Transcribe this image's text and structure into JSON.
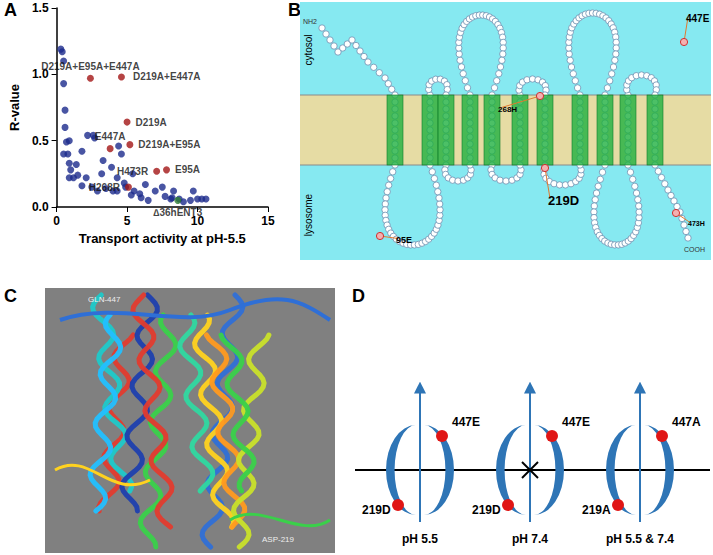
{
  "chart_data": {
    "type": "scatter",
    "xlabel": "Transport activity at pH-5.5",
    "ylabel": "R-value",
    "xlim": [
      0,
      15
    ],
    "xticks": [
      0,
      5,
      10,
      15
    ],
    "ylim": [
      0,
      1.5
    ],
    "yticks": [
      {
        "value": 0,
        "label": "0.0"
      },
      {
        "value": 0.5,
        "label": "0.5"
      },
      {
        "value": 1,
        "label": "1.0"
      },
      {
        "value": 1.5,
        "label": "1.5"
      }
    ],
    "grid": false,
    "series": [
      {
        "color": "#1c2a8c",
        "x": [
          0.3,
          0.4,
          0.5,
          0.5,
          0.6,
          0.6,
          0.7,
          0.9,
          0.8,
          0.9,
          0.5,
          1.0,
          0.9,
          1.2,
          1.5,
          1.4,
          1.8,
          2.2,
          2.6,
          2.7,
          2.1,
          1.8,
          2.5,
          2.9,
          3.5,
          3.3,
          3.9,
          4.3,
          4.4,
          4.6,
          4.3,
          4.8,
          4.9,
          5.5,
          5.9,
          6.0,
          6.5,
          7.0,
          7.5,
          7.7,
          8.2,
          8.7,
          9.0,
          9.5,
          10.0,
          10.3,
          10.6,
          8.3,
          5.3,
          6.3,
          4.0,
          3.2,
          8.1,
          9.7,
          5.4
        ],
        "y": [
          1.19,
          1.17,
          1.1,
          0.93,
          0.73,
          0.6,
          0.49,
          0.5,
          0.4,
          0.33,
          0.4,
          0.28,
          0.22,
          0.22,
          0.24,
          0.32,
          0.42,
          0.54,
          0.54,
          0.52,
          0.22,
          0.16,
          0.15,
          0.12,
          0.14,
          0.35,
          0.3,
          0.22,
          0.46,
          0.4,
          0.12,
          0.18,
          0.15,
          0.12,
          0.1,
          0.07,
          0.05,
          0.12,
          0.15,
          0.08,
          0.07,
          0.06,
          0.04,
          0.05,
          0.06,
          0.06,
          0.06,
          0.12,
          0.09,
          0.17,
          0.12,
          0.25,
          0.06,
          0.12,
          0.25
        ]
      },
      {
        "color": "#a31515",
        "x": [
          2.4,
          4.6,
          5.0,
          3.8,
          5.2,
          7.1,
          7.8,
          5.1
        ],
        "y": [
          0.97,
          0.98,
          0.64,
          0.44,
          0.47,
          0.27,
          0.28,
          0.15
        ],
        "labels": [
          "D219A+E95A+E447A",
          "D219A+E447A",
          "D219A",
          "E447A",
          "D219A+E95A",
          "H473R",
          "E95A",
          "H268R"
        ]
      },
      {
        "color": "#2e7d32",
        "x": [
          8.6
        ],
        "y": [
          0.05
        ],
        "labels": [
          "∆36hENT3"
        ]
      }
    ]
  },
  "panel_labels": [
    "A",
    "B",
    "C",
    "D"
  ],
  "topology": {
    "regions": [
      "cytosol",
      "lysosome"
    ],
    "termini": [
      "NH2",
      "COOH"
    ],
    "residues": [
      "447E",
      "268H",
      "219D",
      "95E",
      "473H"
    ]
  },
  "structure": {
    "labels": [
      "GLN-447",
      "ASP-219"
    ]
  },
  "model": {
    "states": [
      {
        "top": "447E",
        "bottom": "219D",
        "condition": "pH 5.5",
        "transport": true
      },
      {
        "top": "447E",
        "bottom": "219D",
        "condition": "pH 7.4",
        "transport": false
      },
      {
        "top": "447A",
        "bottom": "219A",
        "condition": "pH 5.5 & 7.4",
        "transport": true
      }
    ]
  }
}
